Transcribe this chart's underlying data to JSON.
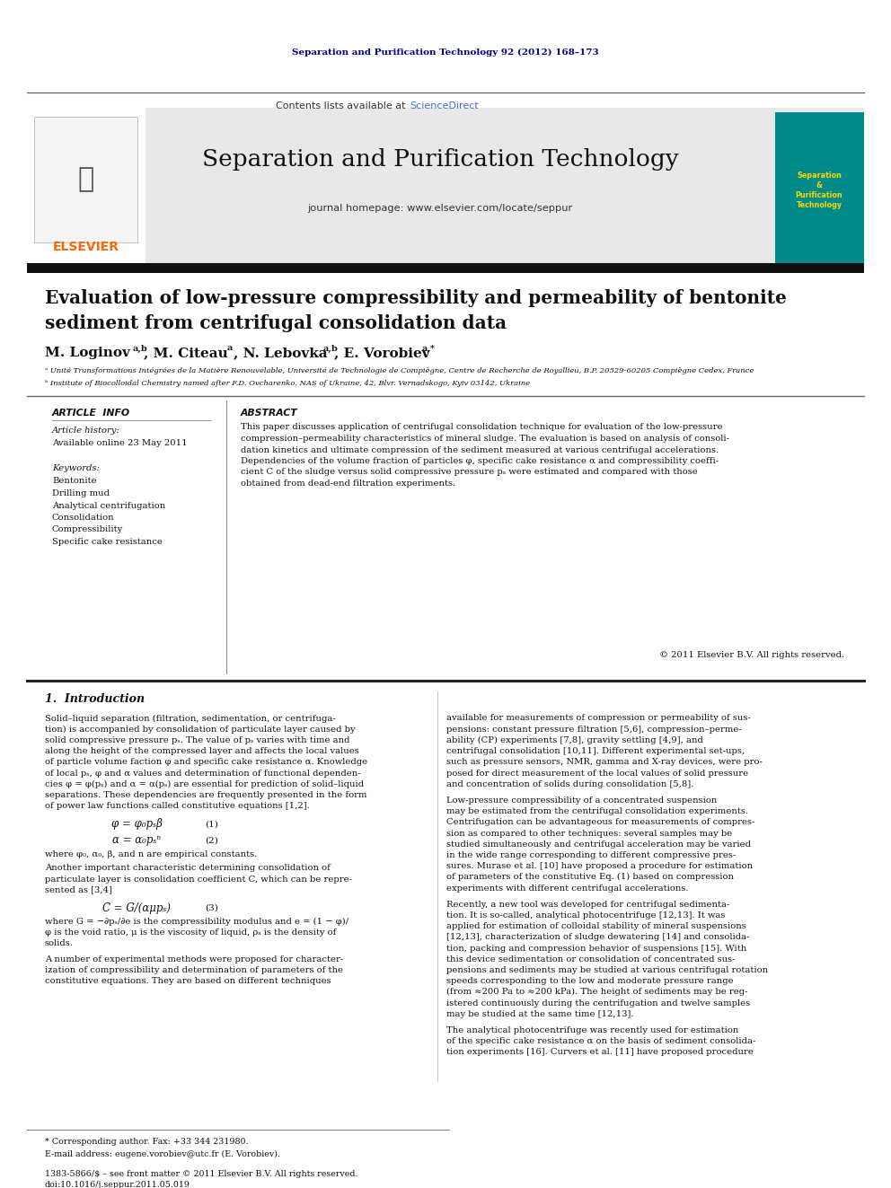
{
  "journal_citation": "Separation and Purification Technology 92 (2012) 168–173",
  "journal_name": "Separation and Purification Technology",
  "journal_homepage": "journal homepage: www.elsevier.com/locate/seppur",
  "contents_line": "Contents lists available at",
  "sciencedirect": "ScienceDirect",
  "paper_title_line1": "Evaluation of low-pressure compressibility and permeability of bentonite",
  "paper_title_line2": "sediment from centrifugal consolidation data",
  "article_info_title": "ARTICLE  INFO",
  "abstract_title": "ABSTRACT",
  "article_history": "Article history:",
  "available_online": "Available online 23 May 2011",
  "keywords_title": "Keywords:",
  "keywords": [
    "Bentonite",
    "Drilling mud",
    "Analytical centrifugation",
    "Consolidation",
    "Compressibility",
    "Specific cake resistance"
  ],
  "abstract_text": "This paper discusses application of centrifugal consolidation technique for evaluation of the low-pressure compression–permeability characteristics of mineral sludge. The evaluation is based on analysis of consolidation kinetics and ultimate compression of the sediment measured at various centrifugal accelerations. Dependencies of the volume fraction of particles φ, specific cake resistance α and compressibility coefficient C of the sludge versus solid compressive pressure pₛ were estimated and compared with those obtained from dead-end filtration experiments.",
  "copyright": "© 2011 Elsevier B.V. All rights reserved.",
  "intro_title": "1.  Introduction",
  "affil_a": "ᵃ Unité Transformations Intégrées de la Matière Renouvelable, Université de Technologie de Compiègne, Centre de Recherche de Royallieu, B.P. 20529-60205 Compiègne Cedex, France",
  "affil_b": "ᵇ Institute of Biocolloidal Chemistry named after F.D. Ovcharenko, NAS of Ukraine, 42, Blvr. Vernadskogo, Kyiv 03142, Ukraine",
  "corresponding_note": "* Corresponding author. Fax: +33 344 231980.",
  "email_note": "E-mail address: eugene.vorobiev@utc.fr (E. Vorobiev).",
  "issn_line": "1383-5866/$ – see front matter © 2011 Elsevier B.V. All rights reserved.",
  "doi_line": "doi:10.1016/j.seppur.2011.05.019",
  "header_color": "#00008B",
  "sciencedirect_color": "#4169E1",
  "elsevier_color": "#FF6600",
  "header_bg": "#E8E8E8"
}
